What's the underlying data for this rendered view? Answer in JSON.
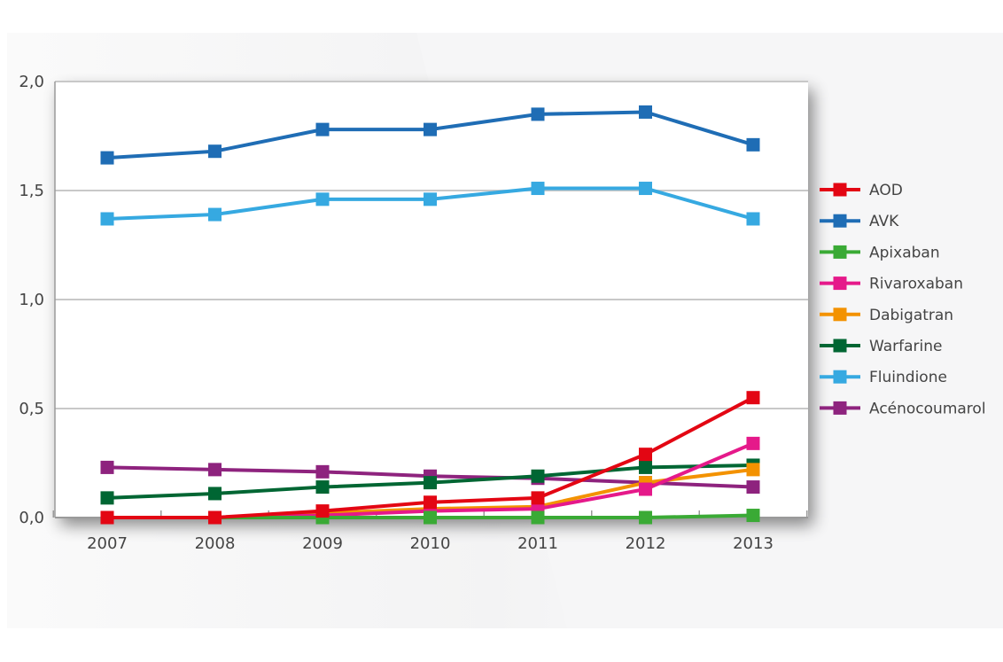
{
  "chart_data": {
    "type": "line",
    "title": "",
    "xlabel": "",
    "ylabel": "",
    "x": [
      "2007",
      "2008",
      "2009",
      "2010",
      "2011",
      "2012",
      "2013"
    ],
    "y_ticks": [
      "0,0",
      "0,5",
      "1,0",
      "1,5",
      "2,0"
    ],
    "y_tick_values": [
      0,
      0.5,
      1.0,
      1.5,
      2.0
    ],
    "ylim": [
      0,
      2.0
    ],
    "grid": true,
    "legend_position": "right",
    "marker": "square",
    "series": [
      {
        "name": "AOD",
        "color": "#e30613",
        "values": [
          0.0,
          0.0,
          0.03,
          0.07,
          0.09,
          0.29,
          0.55
        ]
      },
      {
        "name": "AVK",
        "color": "#1f6db5",
        "values": [
          1.65,
          1.68,
          1.78,
          1.78,
          1.85,
          1.86,
          1.71
        ]
      },
      {
        "name": "Apixaban",
        "color": "#3aaa35",
        "values": [
          0.0,
          0.0,
          0.0,
          0.0,
          0.0,
          0.0,
          0.01
        ]
      },
      {
        "name": "Rivaroxaban",
        "color": "#e5198a",
        "values": [
          0.0,
          0.0,
          0.01,
          0.03,
          0.04,
          0.13,
          0.34
        ]
      },
      {
        "name": "Dabigatran",
        "color": "#f39200",
        "values": [
          0.0,
          0.0,
          0.02,
          0.04,
          0.05,
          0.16,
          0.22
        ]
      },
      {
        "name": "Warfarine",
        "color": "#006633",
        "values": [
          0.09,
          0.11,
          0.14,
          0.16,
          0.19,
          0.23,
          0.24
        ]
      },
      {
        "name": "Fluindione",
        "color": "#36a9e1",
        "values": [
          1.37,
          1.39,
          1.46,
          1.46,
          1.51,
          1.51,
          1.37
        ]
      },
      {
        "name": "Acénocoumarol",
        "color": "#8e237e",
        "values": [
          0.23,
          0.22,
          0.21,
          0.19,
          0.18,
          0.16,
          0.14
        ]
      }
    ]
  }
}
